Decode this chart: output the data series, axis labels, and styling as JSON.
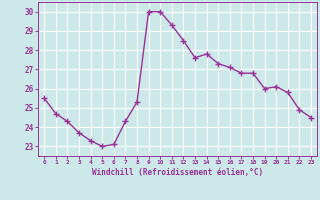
{
  "x": [
    0,
    1,
    2,
    3,
    4,
    5,
    6,
    7,
    8,
    9,
    10,
    11,
    12,
    13,
    14,
    15,
    16,
    17,
    18,
    19,
    20,
    21,
    22,
    23
  ],
  "y": [
    25.5,
    24.7,
    24.3,
    23.7,
    23.3,
    23.0,
    23.1,
    24.3,
    25.3,
    30.0,
    30.0,
    29.3,
    28.5,
    27.6,
    27.8,
    27.3,
    27.1,
    26.8,
    26.8,
    26.0,
    26.1,
    25.8,
    24.9,
    24.5
  ],
  "line_color": "#993399",
  "marker_color": "#993399",
  "bg_color": "#cce8e8",
  "grid_color": "#ffffff",
  "xlabel": "Windchill (Refroidissement éolien,°C)",
  "xlabel_color": "#993399",
  "tick_color": "#993399",
  "spine_color": "#993399",
  "ylim": [
    22.5,
    30.5
  ],
  "xlim": [
    -0.5,
    23.5
  ],
  "yticks": [
    23,
    24,
    25,
    26,
    27,
    28,
    29,
    30
  ],
  "xticks": [
    0,
    1,
    2,
    3,
    4,
    5,
    6,
    7,
    8,
    9,
    10,
    11,
    12,
    13,
    14,
    15,
    16,
    17,
    18,
    19,
    20,
    21,
    22,
    23
  ]
}
